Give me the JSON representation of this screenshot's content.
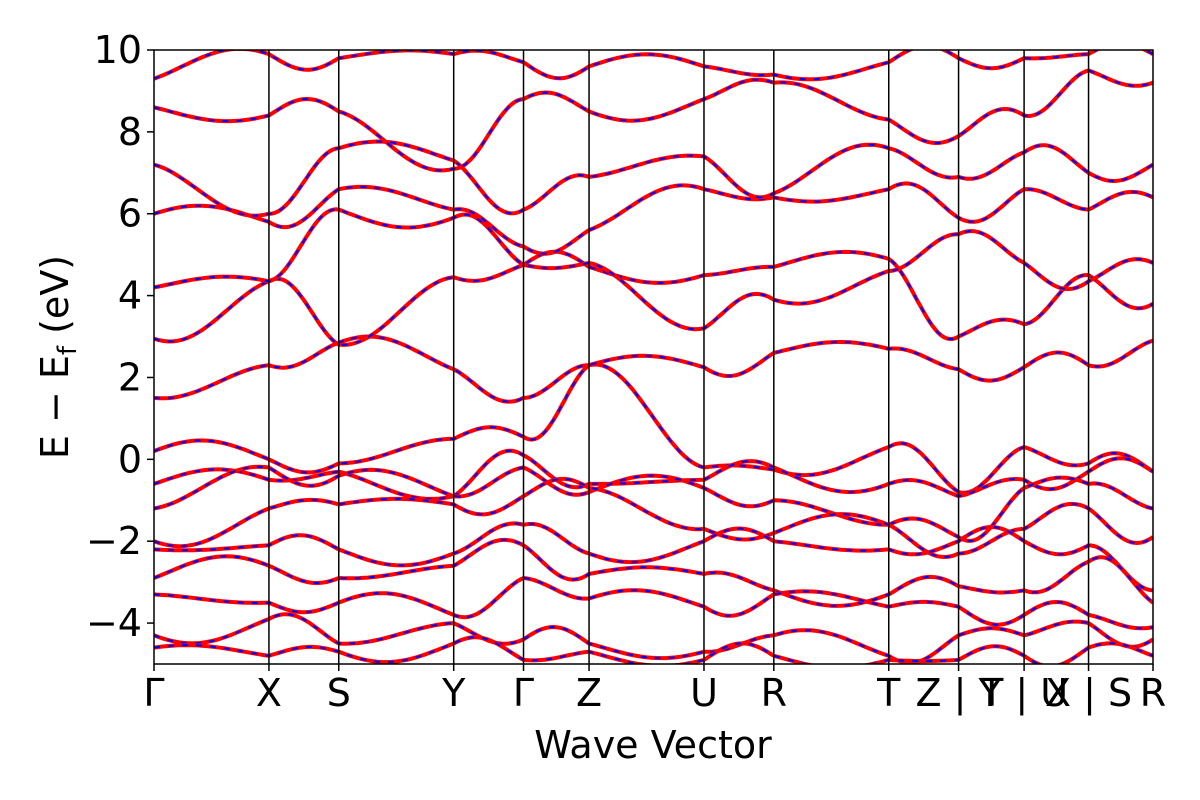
{
  "chart_data": {
    "type": "line",
    "title": "",
    "xlabel": "Wave Vector",
    "ylabel": "E − E_f (eV)",
    "ylabel_main": "E  −  E",
    "ylabel_sub": "f",
    "ylabel_unit": " (eV)",
    "ylim": [
      -5,
      10
    ],
    "yticks": [
      -4,
      -2,
      0,
      2,
      4,
      6,
      8,
      10
    ],
    "ytick_labels": [
      "−4",
      "−2",
      "0",
      "2",
      "4",
      "6",
      "8",
      "10"
    ],
    "grid": false,
    "xlim": [
      0,
      9.3
    ],
    "kpoints": [
      {
        "label": "Γ",
        "x": 0.0
      },
      {
        "label": "X",
        "x": 1.07
      },
      {
        "label": "S",
        "x": 1.72
      },
      {
        "label": "Y",
        "x": 2.79
      },
      {
        "label": "Γ",
        "x": 3.44
      },
      {
        "label": "Z",
        "x": 4.05
      },
      {
        "label": "U",
        "x": 5.12
      },
      {
        "label": "R",
        "x": 5.77
      },
      {
        "label": "T",
        "x": 6.84
      },
      {
        "label": "Z | Y",
        "x": 7.49
      },
      {
        "label": "T | U",
        "x": 8.1
      },
      {
        "label": "X | S",
        "x": 8.7
      },
      {
        "label": "R",
        "x": 9.3
      }
    ],
    "series": [
      {
        "name": "",
        "color": "#ff0000",
        "style": "solid"
      },
      {
        "name": "",
        "color": "#0000ff",
        "style": "dashed"
      }
    ],
    "band_samples": [
      [
        0.2,
        0.0,
        -0.1,
        0.5,
        0.55,
        2.3,
        -0.2,
        -0.25,
        0.3,
        -0.8,
        0.3,
        -0.1,
        -0.3
      ],
      [
        1.5,
        2.3,
        2.85,
        2.2,
        1.5,
        2.3,
        2.25,
        2.6,
        2.7,
        2.2,
        2.25,
        2.3,
        2.9
      ],
      [
        2.95,
        4.35,
        2.8,
        4.45,
        4.75,
        4.7,
        4.5,
        4.7,
        4.9,
        3.0,
        3.3,
        4.5,
        3.8
      ],
      [
        4.2,
        4.35,
        6.1,
        5.9,
        4.75,
        4.8,
        3.2,
        3.9,
        4.6,
        5.5,
        4.8,
        4.35,
        4.8
      ],
      [
        6.0,
        5.8,
        6.6,
        6.1,
        5.2,
        5.6,
        6.6,
        6.4,
        6.6,
        5.9,
        6.6,
        6.1,
        6.4
      ],
      [
        7.2,
        6.0,
        7.6,
        7.3,
        6.1,
        6.9,
        7.4,
        6.5,
        7.6,
        6.9,
        7.5,
        7.0,
        7.2
      ],
      [
        8.6,
        8.4,
        8.5,
        7.1,
        8.8,
        8.5,
        8.8,
        9.2,
        8.3,
        7.9,
        8.4,
        9.5,
        9.2
      ],
      [
        -0.6,
        -0.5,
        -0.3,
        -0.9,
        0.1,
        -0.6,
        -0.5,
        -0.2,
        -0.6,
        -0.9,
        -0.5,
        -0.3,
        -0.3
      ],
      [
        -1.2,
        -0.2,
        -0.4,
        -0.9,
        -0.2,
        -0.8,
        -0.7,
        -1.0,
        -1.6,
        -1.9,
        -0.7,
        -0.6,
        -1.2
      ],
      [
        -2.0,
        -1.2,
        -1.1,
        -1.1,
        -0.9,
        -0.7,
        -1.7,
        -1.8,
        -1.6,
        -2.3,
        -1.7,
        -1.2,
        -1.9
      ],
      [
        -2.2,
        -2.1,
        -2.2,
        -2.3,
        -1.6,
        -2.3,
        -2.0,
        -2.0,
        -2.2,
        -2.0,
        -2.0,
        -2.1,
        -3.2
      ],
      [
        -2.9,
        -2.6,
        -2.9,
        -2.6,
        -2.1,
        -2.8,
        -2.8,
        -3.2,
        -3.3,
        -3.1,
        -3.2,
        -2.5,
        -3.5
      ],
      [
        -3.3,
        -3.5,
        -3.5,
        -3.8,
        -2.9,
        -3.4,
        -3.6,
        -3.3,
        -3.6,
        -3.6,
        -3.8,
        -3.8,
        -4.1
      ],
      [
        -4.3,
        -3.9,
        -4.5,
        -4.0,
        -4.4,
        -4.5,
        -4.7,
        -4.3,
        -4.8,
        -4.3,
        -4.3,
        -4.0,
        -4.4
      ],
      [
        -4.6,
        -4.8,
        -4.7,
        -4.5,
        -4.9,
        -4.7,
        -4.9,
        -4.8,
        -4.9,
        -4.9,
        -4.8,
        -4.6,
        -4.8
      ],
      [
        9.3,
        9.9,
        9.8,
        9.9,
        9.7,
        9.6,
        9.6,
        9.4,
        9.7,
        9.8,
        9.8,
        9.9,
        9.9
      ]
    ]
  }
}
